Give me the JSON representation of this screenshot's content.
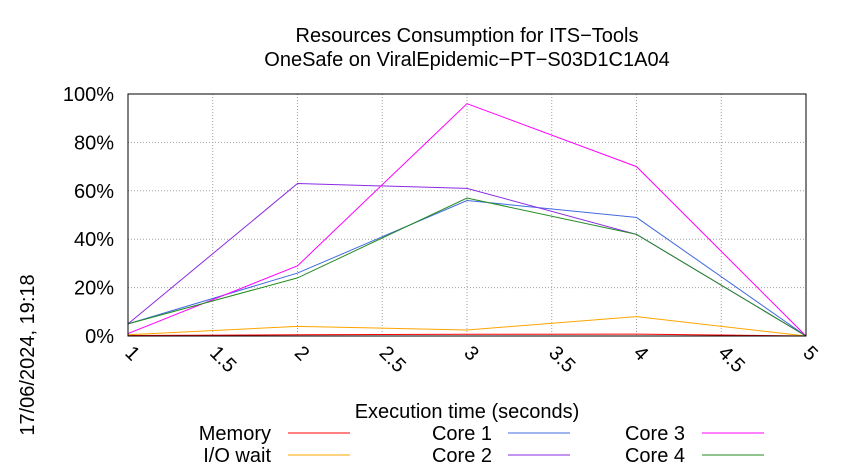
{
  "chart_data": {
    "type": "line",
    "title": "Resources Consumption for ITS−Tools",
    "subtitle": "OneSafe on ViralEpidemic−PT−S03D1C1A04",
    "xlabel": "Execution time (seconds)",
    "ylabel": "",
    "side_label": "17/06/2024, 19:18",
    "xlim": [
      1,
      5
    ],
    "ylim": [
      0,
      100
    ],
    "x_ticks": [
      1,
      1.5,
      2,
      2.5,
      3,
      3.5,
      4,
      4.5,
      5
    ],
    "y_ticks": [
      {
        "value": 0,
        "label": "0%"
      },
      {
        "value": 20,
        "label": "20%"
      },
      {
        "value": 40,
        "label": "40%"
      },
      {
        "value": 60,
        "label": "60%"
      },
      {
        "value": 80,
        "label": "80%"
      },
      {
        "value": 100,
        "label": "100%"
      }
    ],
    "grid": true,
    "legend_position": "bottom",
    "x": [
      1,
      2,
      3,
      4,
      5
    ],
    "series": [
      {
        "name": "Memory",
        "color": "#ff0000",
        "values": [
          0.2,
          0.5,
          0.7,
          0.8,
          0
        ]
      },
      {
        "name": "I/O wait",
        "color": "#ffa500",
        "values": [
          0.5,
          4,
          2.5,
          8,
          0
        ]
      },
      {
        "name": "Core 1",
        "color": "#4169e1",
        "values": [
          5,
          26,
          56,
          49,
          0
        ]
      },
      {
        "name": "Core 2",
        "color": "#8a2be2",
        "values": [
          5,
          63,
          61,
          42,
          0
        ]
      },
      {
        "name": "Core 3",
        "color": "#ff00ff",
        "values": [
          1,
          29,
          96,
          70,
          0
        ]
      },
      {
        "name": "Core 4",
        "color": "#228b22",
        "values": [
          5,
          24,
          57,
          42,
          0
        ]
      }
    ]
  }
}
